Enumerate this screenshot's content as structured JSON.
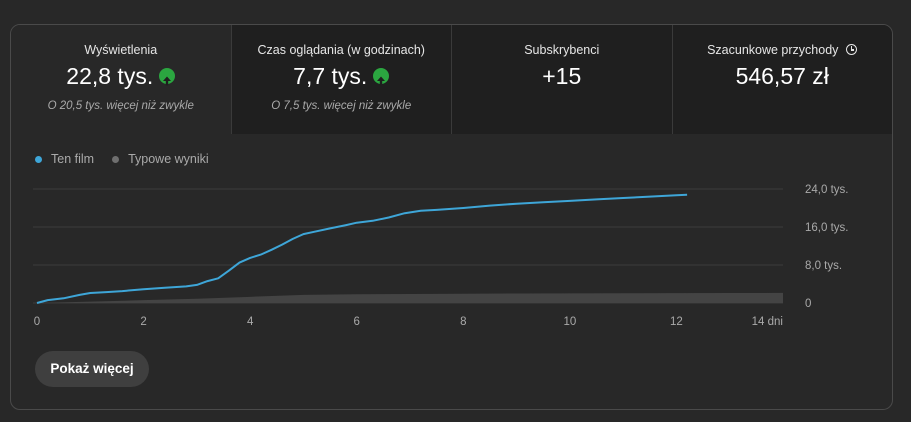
{
  "metrics": [
    {
      "label": "Wyświetlenia",
      "value": "22,8 tys.",
      "note": "O 20,5 tys. więcej niż zwykle"
    },
    {
      "label": "Czas oglądania (w godzinach)",
      "value": "7,7 tys.",
      "note": "O 7,5 tys. więcej niż zwykle"
    },
    {
      "label": "Subskrybenci",
      "value": "+15"
    },
    {
      "label": "Szacunkowe przychody",
      "value": "546,57 zł"
    }
  ],
  "colors": {
    "accent": "#3ea6d8",
    "typical": "#6f6f6f",
    "up": "#2ba640"
  },
  "show_more_label": "Pokaż więcej",
  "chart_data": {
    "type": "line",
    "legend": [
      "Ten film",
      "Typowe wyniki"
    ],
    "legend_position": "top-left",
    "x_ticks": [
      "0",
      "2",
      "4",
      "6",
      "8",
      "10",
      "12",
      "14 dni"
    ],
    "y_ticks": [
      "0",
      "8,0 tys.",
      "16,0 tys.",
      "24,0 tys."
    ],
    "xlim": [
      0,
      14
    ],
    "ylim": [
      0,
      24000
    ],
    "grid": true,
    "series": [
      {
        "name": "Ten film",
        "x": [
          0,
          0.2,
          0.5,
          0.8,
          1.0,
          1.3,
          1.6,
          2.0,
          2.4,
          2.8,
          3.0,
          3.2,
          3.4,
          3.6,
          3.8,
          4.0,
          4.2,
          4.4,
          4.6,
          4.8,
          5.0,
          5.2,
          5.5,
          5.8,
          6.0,
          6.3,
          6.6,
          6.9,
          7.2,
          7.5,
          8.0,
          8.5,
          9.0,
          9.5,
          10.0,
          10.5,
          11.0,
          11.5,
          12.0,
          12.2
        ],
        "y": [
          0,
          600,
          1000,
          1700,
          2100,
          2300,
          2500,
          2900,
          3200,
          3500,
          3800,
          4600,
          5200,
          6800,
          8500,
          9500,
          10200,
          11200,
          12300,
          13500,
          14500,
          15000,
          15700,
          16400,
          16900,
          17300,
          18000,
          18900,
          19400,
          19600,
          20000,
          20500,
          20900,
          21200,
          21500,
          21800,
          22100,
          22400,
          22700,
          22800
        ]
      },
      {
        "name": "Typowe wyniki",
        "x": [
          0,
          1,
          2,
          3,
          4,
          5,
          6,
          7,
          8,
          9,
          10,
          11,
          12,
          13,
          14
        ],
        "y": [
          0,
          300,
          600,
          900,
          1300,
          1700,
          1850,
          1900,
          1950,
          2000,
          2030,
          2060,
          2080,
          2100,
          2120
        ]
      }
    ]
  }
}
